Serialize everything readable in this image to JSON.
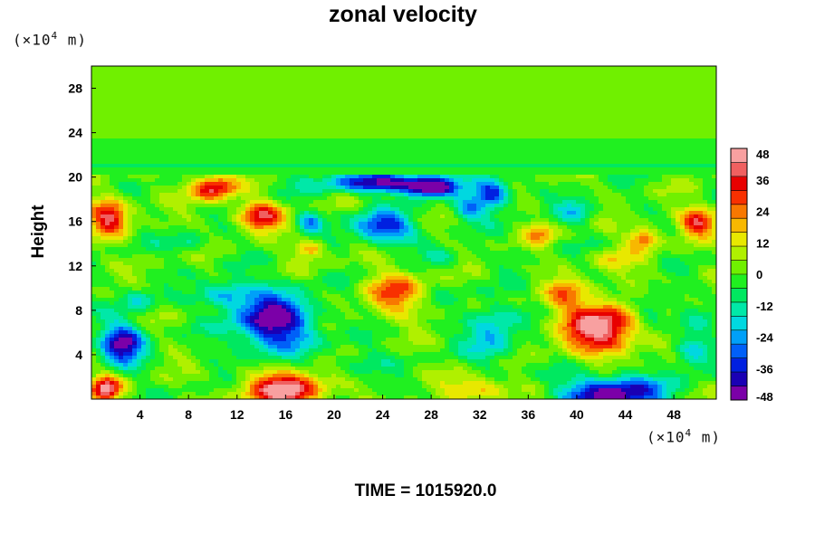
{
  "chart_data": {
    "type": "heatmap",
    "title": "zonal velocity",
    "ylabel": "Height",
    "xlabel": "",
    "x_unit_prefix": "(×10",
    "x_unit_exp": "4",
    "x_unit_suffix": " m)",
    "y_unit_prefix": "(×10",
    "y_unit_exp": "4",
    "y_unit_suffix": " m)",
    "xlim": [
      0,
      51.5
    ],
    "ylim": [
      0,
      30
    ],
    "xticks": [
      4,
      8,
      12,
      16,
      20,
      24,
      28,
      32,
      36,
      40,
      44,
      48
    ],
    "yticks": [
      4,
      8,
      12,
      16,
      20,
      24,
      28
    ],
    "colorbar": {
      "min": -48,
      "max": 48,
      "step": 6,
      "tick_labels": [
        48,
        36,
        24,
        12,
        0,
        -12,
        -24,
        -36,
        -48
      ],
      "colors": [
        "#7b00a8",
        "#1a00b4",
        "#0020e0",
        "#0060f8",
        "#00a0f8",
        "#00d8e0",
        "#00e8a8",
        "#00e860",
        "#20f020",
        "#70f000",
        "#b0f000",
        "#e8e800",
        "#f8b800",
        "#f87800",
        "#f83000",
        "#e80000",
        "#f06060",
        "#f8a0a0"
      ]
    },
    "features": [
      {
        "x": 15,
        "y": 7,
        "sx": 3.2,
        "sy": 2.6,
        "value": -48
      },
      {
        "x": 42,
        "y": 6.5,
        "sx": 3.2,
        "sy": 2.4,
        "value": 46
      },
      {
        "x": 43,
        "y": 0.5,
        "sx": 4,
        "sy": 1.6,
        "value": -48
      },
      {
        "x": 16,
        "y": 0.8,
        "sx": 3.2,
        "sy": 1.6,
        "value": 46
      },
      {
        "x": 2.5,
        "y": 5,
        "sx": 1.8,
        "sy": 1.8,
        "value": -45
      },
      {
        "x": 1.2,
        "y": 1,
        "sx": 1.2,
        "sy": 1.2,
        "value": 40
      },
      {
        "x": 25,
        "y": 9.5,
        "sx": 2.4,
        "sy": 2,
        "value": 25
      },
      {
        "x": 33,
        "y": 6,
        "sx": 2,
        "sy": 3,
        "value": -22
      },
      {
        "x": 39,
        "y": 9.5,
        "sx": 1.6,
        "sy": 1.4,
        "value": 18
      },
      {
        "x": 46,
        "y": 8,
        "sx": 1.6,
        "sy": 1.4,
        "value": -20
      },
      {
        "x": 49.5,
        "y": 4.5,
        "sx": 1.5,
        "sy": 2,
        "value": -20
      },
      {
        "x": 4,
        "y": 9,
        "sx": 1.4,
        "sy": 1,
        "value": -16
      },
      {
        "x": 11,
        "y": 9.5,
        "sx": 2,
        "sy": 1.3,
        "value": -22
      },
      {
        "x": 32,
        "y": 1,
        "sx": 2.5,
        "sy": 1.2,
        "value": 22
      },
      {
        "x": 22,
        "y": 3.5,
        "sx": 2,
        "sy": 1.5,
        "value": -10
      },
      {
        "x": 1.5,
        "y": 16.5,
        "sx": 1.6,
        "sy": 1.6,
        "value": 38
      },
      {
        "x": 10,
        "y": 19,
        "sx": 1.8,
        "sy": 1.2,
        "value": 38
      },
      {
        "x": 14,
        "y": 16.5,
        "sx": 1.8,
        "sy": 1.3,
        "value": 36
      },
      {
        "x": 24,
        "y": 19.5,
        "sx": 5,
        "sy": 0.9,
        "value": -42
      },
      {
        "x": 28,
        "y": 19,
        "sx": 2,
        "sy": 0.8,
        "value": -46
      },
      {
        "x": 33,
        "y": 18.5,
        "sx": 1.5,
        "sy": 1.5,
        "value": -36
      },
      {
        "x": 24,
        "y": 15.5,
        "sx": 2.5,
        "sy": 1.3,
        "value": -38
      },
      {
        "x": 18,
        "y": 16,
        "sx": 1,
        "sy": 1,
        "value": -22
      },
      {
        "x": 31,
        "y": 17,
        "sx": 1.2,
        "sy": 1,
        "value": -24
      },
      {
        "x": 40,
        "y": 17,
        "sx": 1.5,
        "sy": 1.2,
        "value": -18
      },
      {
        "x": 50,
        "y": 16,
        "sx": 1.5,
        "sy": 1.2,
        "value": 36
      },
      {
        "x": 45.5,
        "y": 14.5,
        "sx": 1.3,
        "sy": 1,
        "value": 30
      },
      {
        "x": 18,
        "y": 13.5,
        "sx": 1.2,
        "sy": 0.8,
        "value": 22
      },
      {
        "x": 29,
        "y": 13,
        "sx": 1.5,
        "sy": 0.8,
        "value": -14
      },
      {
        "x": 43,
        "y": 12.5,
        "sx": 2,
        "sy": 1,
        "value": 12
      },
      {
        "x": 8,
        "y": 14,
        "sx": 1.5,
        "sy": 1,
        "value": -12
      },
      {
        "x": 37,
        "y": 15,
        "sx": 1.3,
        "sy": 1,
        "value": 18
      }
    ],
    "upper_band": {
      "y_from": 20.2,
      "y_to": 23.6,
      "value": -4
    },
    "noise_amplitude": 8
  },
  "time_label": "TIME = 1015920.0"
}
